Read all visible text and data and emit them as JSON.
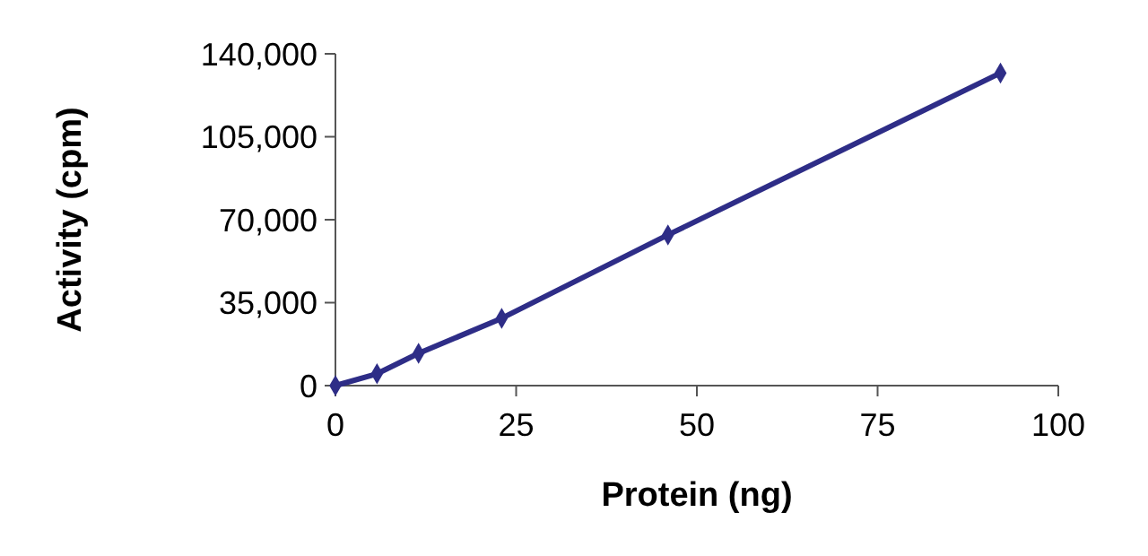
{
  "chart_data": {
    "type": "line",
    "xlabel": "Protein (ng)",
    "ylabel": "Activity (cpm)",
    "x": [
      0,
      5.75,
      11.5,
      23,
      46,
      92
    ],
    "series": [
      {
        "color": "#2e2d87",
        "values": [
          0,
          5000,
          13600,
          28400,
          63600,
          131900
        ]
      }
    ],
    "xlim": [
      0,
      100
    ],
    "xticks": [
      0,
      25,
      50,
      75,
      100
    ],
    "ylim": [
      0,
      140000
    ],
    "yticks": [
      0,
      {
        "value": 35000,
        "label": "35,000"
      },
      {
        "value": 70000,
        "label": "70,000"
      },
      {
        "value": 105000,
        "label": "105,000"
      },
      {
        "value": 140000,
        "label": "140,000"
      }
    ],
    "marker": "diamond",
    "line_style": "solid"
  }
}
